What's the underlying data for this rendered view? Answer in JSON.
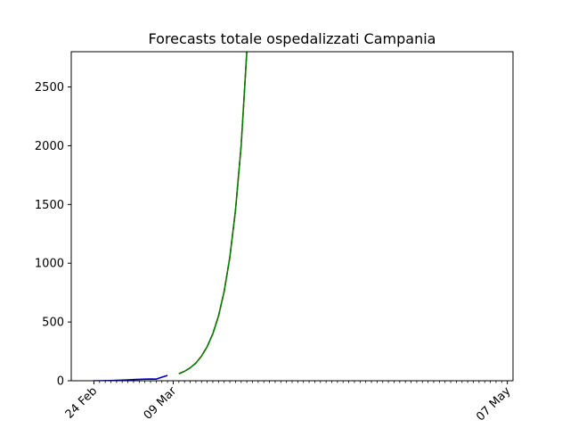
{
  "chart_data": {
    "type": "line",
    "title": "Forecasts totale ospedalizzati Campania",
    "xlabel": "",
    "ylabel": "",
    "x_axis": {
      "type": "date",
      "range": [
        "2020-02-20",
        "2020-05-08"
      ],
      "major_ticks": [
        {
          "date": "2020-02-24",
          "label": "24 Feb"
        },
        {
          "date": "2020-03-09",
          "label": "09 Mar"
        },
        {
          "date": "2020-05-07",
          "label": "07 May"
        }
      ],
      "minor_ticks": "daily"
    },
    "y_axis": {
      "range": [
        0,
        2800
      ],
      "ticks": [
        0,
        500,
        1000,
        1500,
        2000,
        2500
      ]
    },
    "grid": false,
    "series": [
      {
        "color": "#0000cc",
        "style": "solid",
        "points": [
          {
            "x": "2020-02-24",
            "y": 0
          },
          {
            "x": "2020-02-25",
            "y": 0
          },
          {
            "x": "2020-02-26",
            "y": 1
          },
          {
            "x": "2020-02-27",
            "y": 2
          },
          {
            "x": "2020-02-28",
            "y": 3
          },
          {
            "x": "2020-02-29",
            "y": 5
          },
          {
            "x": "2020-03-01",
            "y": 7
          },
          {
            "x": "2020-03-02",
            "y": 10
          },
          {
            "x": "2020-03-03",
            "y": 12
          },
          {
            "x": "2020-03-04",
            "y": 14
          },
          {
            "x": "2020-03-05",
            "y": 15
          },
          {
            "x": "2020-03-06",
            "y": 14
          },
          {
            "x": "2020-03-07",
            "y": 30
          },
          {
            "x": "2020-03-08",
            "y": 45
          }
        ]
      },
      {
        "color": "#ff0000",
        "style": "dashed",
        "points": [
          {
            "x": "2020-03-10",
            "y": 60
          },
          {
            "x": "2020-03-11",
            "y": 80
          },
          {
            "x": "2020-03-12",
            "y": 110
          },
          {
            "x": "2020-03-13",
            "y": 150
          },
          {
            "x": "2020-03-14",
            "y": 210
          },
          {
            "x": "2020-03-15",
            "y": 290
          },
          {
            "x": "2020-03-16",
            "y": 400
          },
          {
            "x": "2020-03-17",
            "y": 550
          },
          {
            "x": "2020-03-18",
            "y": 760
          },
          {
            "x": "2020-03-19",
            "y": 1050
          },
          {
            "x": "2020-03-20",
            "y": 1450
          },
          {
            "x": "2020-03-21",
            "y": 2000
          },
          {
            "x": "2020-03-22",
            "y": 2800
          }
        ]
      },
      {
        "color": "#008000",
        "style": "solid",
        "points": [
          {
            "x": "2020-03-10",
            "y": 60
          },
          {
            "x": "2020-03-11",
            "y": 80
          },
          {
            "x": "2020-03-12",
            "y": 110
          },
          {
            "x": "2020-03-13",
            "y": 150
          },
          {
            "x": "2020-03-14",
            "y": 210
          },
          {
            "x": "2020-03-15",
            "y": 290
          },
          {
            "x": "2020-03-16",
            "y": 400
          },
          {
            "x": "2020-03-17",
            "y": 550
          },
          {
            "x": "2020-03-18",
            "y": 760
          },
          {
            "x": "2020-03-19",
            "y": 1050
          },
          {
            "x": "2020-03-20",
            "y": 1450
          },
          {
            "x": "2020-03-21",
            "y": 2000
          },
          {
            "x": "2020-03-22",
            "y": 2800
          }
        ]
      }
    ]
  }
}
